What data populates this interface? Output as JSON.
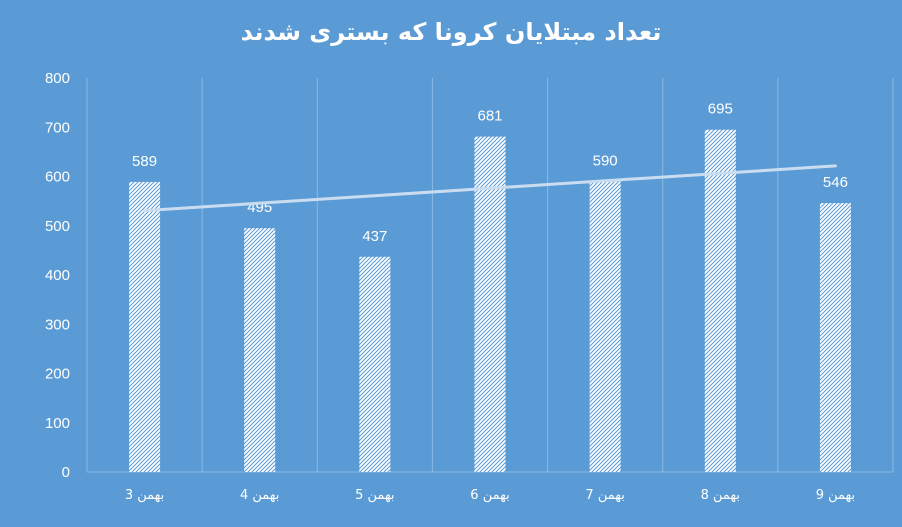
{
  "chart_data": {
    "type": "bar",
    "title": "تعداد مبتلایان کرونا که بستری شدند",
    "categories": [
      "3 بهمن",
      "4 بهمن",
      "5 بهمن",
      "6 بهمن",
      "7 بهمن",
      "8 بهمن",
      "9 بهمن"
    ],
    "values": [
      589,
      495,
      437,
      681,
      590,
      695,
      546
    ],
    "ylim": [
      0,
      800
    ],
    "yticks": [
      "0",
      "100",
      "200",
      "300",
      "400",
      "500",
      "600",
      "700",
      "800"
    ],
    "data_labels": [
      "589",
      "495",
      "437",
      "681",
      "590",
      "695",
      "546"
    ],
    "trendline": "linear",
    "grid": "vertical",
    "bar_fill": "white diagonal hatch",
    "colors": {
      "background": "#5b9bd5",
      "bar": "#ffffff",
      "trendline": "#c9dcf0",
      "grid": "#8ab8e3"
    }
  }
}
